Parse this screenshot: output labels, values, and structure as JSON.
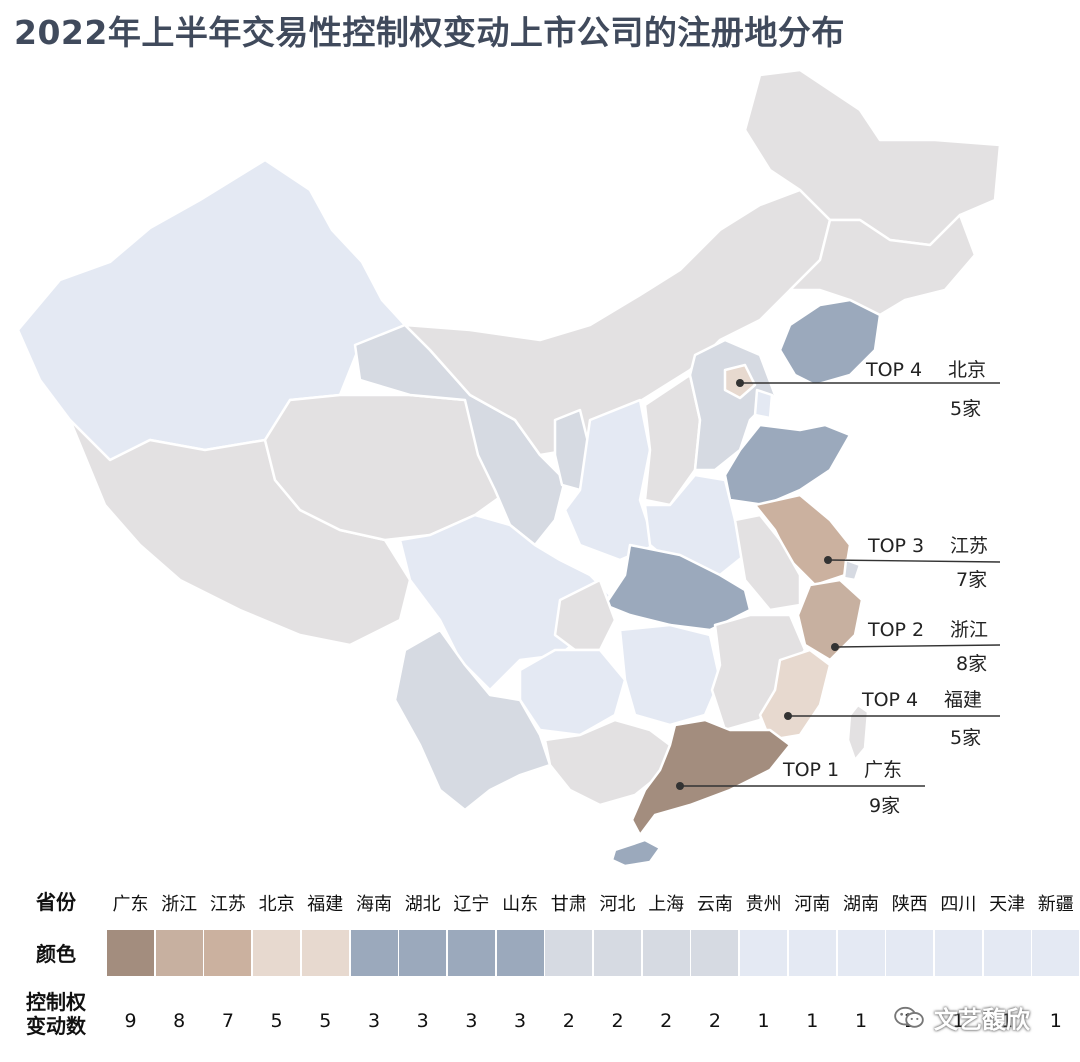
{
  "title": "2022年上半年交易性控制权变动上市公司的注册地分布",
  "colors": {
    "c9": "#a38d7e",
    "c8": "#c7b0a0",
    "c7": "#cbb19f",
    "c5": "#e7d9cf",
    "c3": "#9ba9bc",
    "c2": "#d6dae2",
    "c1": "#e4e9f3",
    "c0": "#e3e1e2"
  },
  "callouts": [
    {
      "rank": "TOP 4",
      "province": "北京",
      "value": "5家"
    },
    {
      "rank": "TOP 3",
      "province": "江苏",
      "value": "7家"
    },
    {
      "rank": "TOP 2",
      "province": "浙江",
      "value": "8家"
    },
    {
      "rank": "TOP 4",
      "province": "福建",
      "value": "5家"
    },
    {
      "rank": "TOP 1",
      "province": "广东",
      "value": "9家"
    }
  ],
  "legend": {
    "row_province": "省份",
    "row_color": "颜色",
    "row_count": "控制权\n变动数",
    "items": [
      {
        "name": "广东",
        "count": "9"
      },
      {
        "name": "浙江",
        "count": "8"
      },
      {
        "name": "江苏",
        "count": "7"
      },
      {
        "name": "北京",
        "count": "5"
      },
      {
        "name": "福建",
        "count": "5"
      },
      {
        "name": "海南",
        "count": "3"
      },
      {
        "name": "湖北",
        "count": "3"
      },
      {
        "name": "辽宁",
        "count": "3"
      },
      {
        "name": "山东",
        "count": "3"
      },
      {
        "name": "甘肃",
        "count": "2"
      },
      {
        "name": "河北",
        "count": "2"
      },
      {
        "name": "上海",
        "count": "2"
      },
      {
        "name": "云南",
        "count": "2"
      },
      {
        "name": "贵州",
        "count": "1"
      },
      {
        "name": "河南",
        "count": "1"
      },
      {
        "name": "湖南",
        "count": "1"
      },
      {
        "name": "陕西",
        "count": "1"
      },
      {
        "name": "四川",
        "count": "1"
      },
      {
        "name": "天津",
        "count": "1"
      },
      {
        "name": "新疆",
        "count": "1"
      }
    ]
  },
  "watermark": "文艺馥欣"
}
